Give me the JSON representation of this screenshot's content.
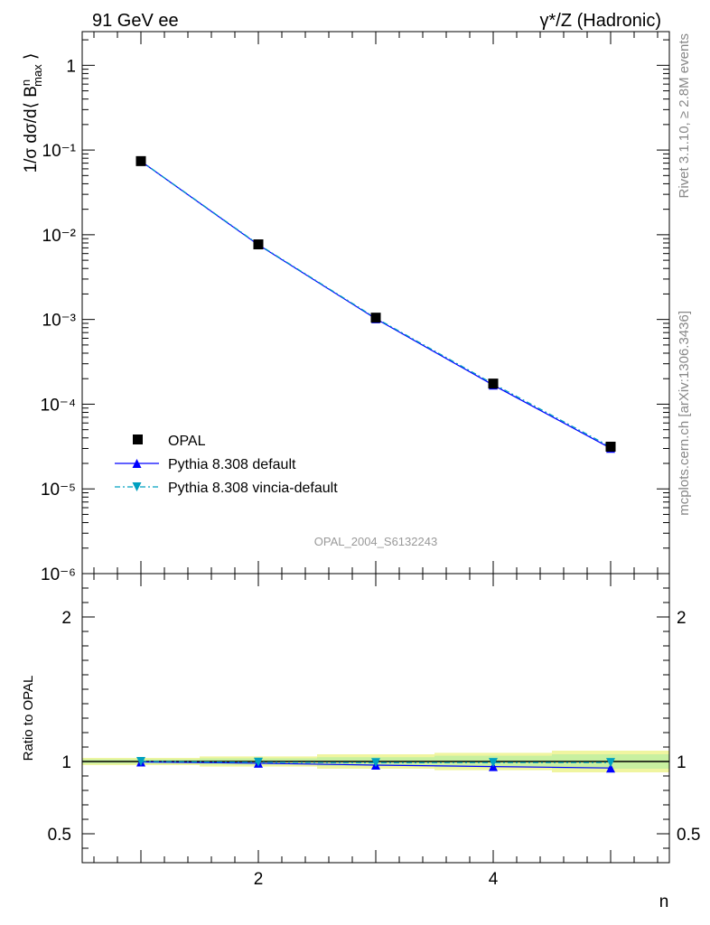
{
  "header": {
    "left": "91 GeV ee",
    "right": "γ*/Z (Hadronic)"
  },
  "side_labels": {
    "rivet": "Rivet 3.1.10, ≥ 2.8M events",
    "mcplots": "mcplots.cern.ch [arXiv:1306.3436]"
  },
  "watermark": "OPAL_2004_S6132243",
  "chart_data": [
    {
      "type": "line",
      "panel": "main",
      "ylabel": "1/σ dσ/d⟨ B^n_max ⟩",
      "yscale": "log",
      "ylim": [
        1e-06,
        2.5
      ],
      "xlim": [
        0.5,
        5.5
      ],
      "y_tick_labels": [
        "1",
        "10⁻¹",
        "10⁻²",
        "10⁻³",
        "10⁻⁴",
        "10⁻⁵",
        "10⁻⁶"
      ],
      "y_tick_values": [
        1,
        0.1,
        0.01,
        0.001,
        0.0001,
        1e-05,
        1e-06
      ],
      "legend_position": "lower-left",
      "series": [
        {
          "name": "OPAL",
          "color": "#000000",
          "marker": "square",
          "x": [
            1,
            2,
            3,
            4,
            5
          ],
          "y": [
            0.074,
            0.0077,
            0.00105,
            0.000175,
            3.15e-05
          ]
        },
        {
          "name": "Pythia 8.308 default",
          "color": "#0000ff",
          "marker": "triangle-up",
          "line": "solid",
          "x": [
            1,
            2,
            3,
            4,
            5
          ],
          "y": [
            0.0738,
            0.0076,
            0.00102,
            0.000168,
            3.02e-05
          ]
        },
        {
          "name": "Pythia 8.308 vincia-default",
          "color": "#00a0c0",
          "marker": "triangle-down",
          "line": "dash-dot",
          "x": [
            1,
            2,
            3,
            4,
            5
          ],
          "y": [
            0.0742,
            0.0077,
            0.00104,
            0.000174,
            3.13e-05
          ]
        }
      ]
    },
    {
      "type": "line",
      "panel": "ratio",
      "ylabel": "Ratio to OPAL",
      "xlabel": "n",
      "ylim": [
        0.3,
        2.3
      ],
      "xlim": [
        0.5,
        5.5
      ],
      "x_tick_labels": [
        "2",
        "4"
      ],
      "x_tick_values": [
        2,
        4
      ],
      "y_tick_labels": [
        "0.5",
        "1",
        "2"
      ],
      "y_tick_values": [
        0.5,
        1,
        2
      ],
      "band": {
        "x_edges": [
          0.5,
          1.5,
          2.5,
          3.5,
          4.5,
          5.5
        ],
        "inner": [
          0.015,
          0.022,
          0.03,
          0.04,
          0.05
        ],
        "outer": [
          0.025,
          0.035,
          0.05,
          0.06,
          0.075
        ],
        "inner_color": "#c8f0a0",
        "outer_color": "#f0f5a0"
      },
      "series": [
        {
          "name": "Pythia 8.308 default",
          "color": "#0000ff",
          "marker": "triangle-up",
          "line": "solid",
          "x": [
            1,
            2,
            3,
            4,
            5
          ],
          "y": [
            0.997,
            0.988,
            0.975,
            0.965,
            0.955
          ]
        },
        {
          "name": "Pythia 8.308 vincia-default",
          "color": "#00a0c0",
          "marker": "triangle-down",
          "line": "dash-dot",
          "x": [
            1,
            2,
            3,
            4,
            5
          ],
          "y": [
            1.0,
            0.995,
            0.992,
            0.993,
            0.993
          ]
        }
      ]
    }
  ]
}
